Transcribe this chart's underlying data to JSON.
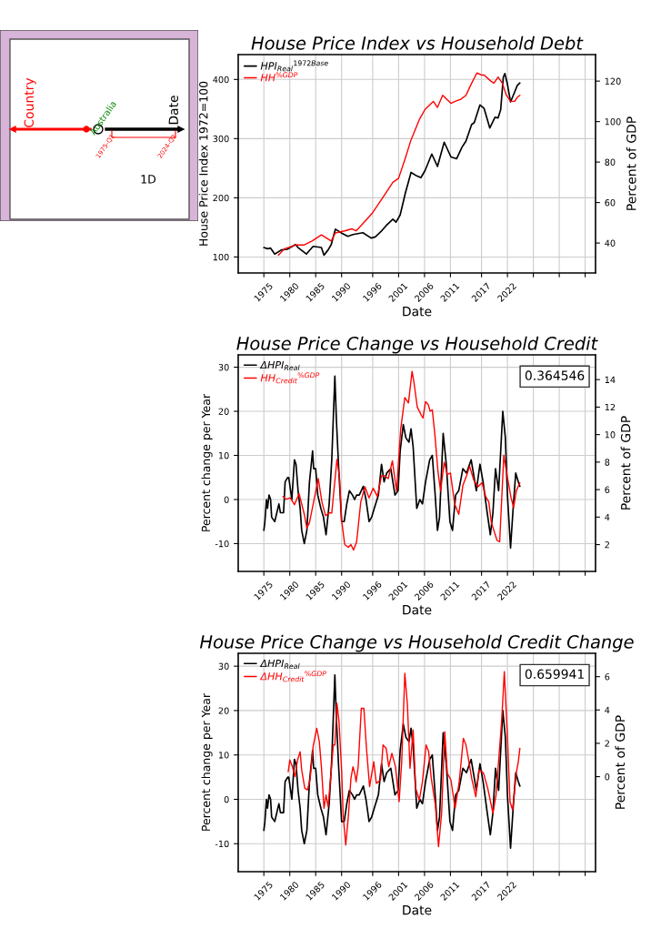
{
  "chart_data": [
    {
      "type": "other",
      "annotations": [
        "Country",
        "Australia",
        "Date",
        "1975-Q1",
        "2024-Q2",
        "1D"
      ]
    },
    {
      "type": "line",
      "title": "House Price Index vs Household Debt",
      "xlabel": "Date",
      "ylabel": "House Price Index 1972=100",
      "y2label": "Percent of GDP",
      "xlim": [
        1970.05,
        2039
      ],
      "xticks": [
        1975,
        1980,
        1985,
        1990,
        1996,
        2001,
        2006,
        2011,
        2017,
        2022,
        {
          "value": 2027,
          "label": null
        },
        {
          "value": 2032,
          "label": null
        },
        {
          "value": 2037,
          "label": null
        }
      ],
      "ylim": [
        73,
        442
      ],
      "yticks": [
        100,
        200,
        300,
        400
      ],
      "y2lim": [
        25.2,
        133.1
      ],
      "y2ticks": [
        40,
        60,
        80,
        100,
        120
      ],
      "grid": true,
      "legend": "top left",
      "series": [
        {
          "name": "HPI$_{Real}$$^{1972Base}$",
          "color": "#000000",
          "x": [
            1975.0,
            1975.7,
            1976.3,
            1977.1,
            1978.4,
            1979.5,
            1981.1,
            1981.6,
            1983.2,
            1984.5,
            1986.1,
            1986.6,
            1987.4,
            1988.0,
            1988.8,
            1990.1,
            1991.2,
            1992.2,
            1994.1,
            1995.7,
            1996.5,
            1997.6,
            1998.6,
            1999.9,
            2000.5,
            2001.3,
            2002.3,
            2003.4,
            2004.5,
            2005.3,
            2006.1,
            2007.4,
            2008.5,
            2009.8,
            2011.1,
            2012.2,
            2013.2,
            2014.0,
            2015.1,
            2015.6,
            2016.7,
            2017.5,
            2018.6,
            2019.6,
            2020.2,
            2020.7,
            2021.2,
            2021.5,
            2022.0,
            2022.6,
            2023.4,
            2023.9,
            2024.4
          ],
          "values": [
            116,
            114,
            115,
            105,
            112,
            113,
            121,
            116,
            105,
            118,
            116,
            103,
            112,
            121,
            147,
            140,
            135,
            138,
            141,
            132,
            134,
            143,
            153,
            164,
            159,
            171,
            208,
            243,
            237,
            234,
            246,
            274,
            253,
            294,
            269,
            266,
            285,
            296,
            324,
            327,
            357,
            351,
            318,
            336,
            335,
            349,
            404,
            410,
            392,
            362,
            379,
            390,
            394
          ]
        },
        {
          "name": "HH$^{%GDP}$",
          "color": "#ff0000",
          "axis": "y2",
          "x": [
            1977.8,
            1978.9,
            1981.1,
            1982.7,
            1984.3,
            1986.1,
            1988.0,
            1988.8,
            1990.6,
            1992.0,
            1992.8,
            1993.9,
            1996.0,
            1998.1,
            1999.9,
            2001.0,
            2002.3,
            2003.4,
            2005.0,
            2006.1,
            2007.7,
            2008.5,
            2009.5,
            2011.1,
            2011.9,
            2013.0,
            2014.0,
            2015.1,
            2016.1,
            2017.0,
            2017.5,
            2018.8,
            2019.4,
            2020.2,
            2021.0,
            2021.8,
            2022.6,
            2023.4,
            2023.9,
            2024.4
          ],
          "values": [
            34,
            37,
            39,
            39,
            41,
            44,
            41,
            45,
            46,
            47,
            46,
            49,
            55,
            63,
            70,
            72,
            82,
            91,
            101,
            106,
            110,
            107,
            113,
            109,
            110,
            111,
            113,
            119,
            124,
            123,
            123,
            120,
            119,
            122,
            119,
            113,
            110,
            110,
            112,
            113
          ]
        }
      ]
    },
    {
      "type": "line",
      "title": "House Price Change vs Household Credit",
      "xlabel": "Date",
      "ylabel": "Percent change per Year",
      "y2label": "Percent of GDP",
      "xlim": [
        1970.05,
        2039
      ],
      "xticks": [
        1975,
        1980,
        1985,
        1990,
        1996,
        2001,
        2006,
        2011,
        2017,
        2022,
        {
          "value": 2027,
          "label": null
        },
        {
          "value": 2032,
          "label": null
        },
        {
          "value": 2037,
          "label": null
        }
      ],
      "ylim": [
        -16.3,
        32.8
      ],
      "yticks": [
        -10,
        0,
        10,
        20,
        30
      ],
      "y2lim": [
        0.05,
        15.8
      ],
      "y2ticks": [
        2,
        4,
        6,
        8,
        10,
        12,
        14
      ],
      "grid": true,
      "legend": "top left",
      "annotations": [
        "0.364546"
      ],
      "series": [
        {
          "name": "ΔHPI$_{Real}$",
          "color": "#000000",
          "x": [
            1975.0,
            1975.2,
            1975.5,
            1975.7,
            1976.0,
            1976.3,
            1976.5,
            1977.1,
            1977.9,
            1978.2,
            1978.8,
            1979.1,
            1979.6,
            1979.8,
            1980.4,
            1980.9,
            1981.2,
            1981.6,
            1982.0,
            1982.3,
            1982.8,
            1983.3,
            1983.8,
            1984.4,
            1984.6,
            1985.0,
            1985.4,
            1986.0,
            1986.5,
            1987.0,
            1987.6,
            1988.1,
            1988.7,
            1989.0,
            1989.4,
            1990.0,
            1990.5,
            1991.0,
            1991.5,
            1992.1,
            1992.5,
            1992.9,
            1993.4,
            1994.2,
            1994.7,
            1995.3,
            1995.8,
            1996.3,
            1997.1,
            1997.7,
            1998.2,
            1998.7,
            1999.5,
            2000.3,
            2000.9,
            2001.3,
            2001.9,
            2002.4,
            2003.0,
            2003.4,
            2003.8,
            2004.5,
            2005.1,
            2005.6,
            2006.2,
            2007.0,
            2007.5,
            2008.0,
            2008.5,
            2008.9,
            2009.6,
            2010.2,
            2010.9,
            2011.4,
            2012.0,
            2012.6,
            2013.4,
            2014.1,
            2015.0,
            2016.0,
            2016.7,
            2017.3,
            2018.1,
            2018.7,
            2019.2,
            2019.7,
            2020.3,
            2021.1,
            2021.6,
            2022.0,
            2022.6,
            2023.1,
            2023.6,
            2024.1,
            2024.4
          ],
          "values": [
            -7,
            -5,
            0,
            -2,
            1,
            0,
            -4,
            -5,
            -1,
            -3,
            -3,
            4,
            5,
            5,
            0,
            9,
            8,
            2,
            -2,
            -7,
            -10,
            -7,
            4,
            11,
            7,
            7,
            1,
            -2,
            -4,
            -8,
            -1,
            9,
            28,
            18,
            8,
            -5,
            -5,
            -1,
            2,
            1,
            0,
            1,
            1,
            3,
            0,
            -5,
            -4,
            -2,
            1,
            8,
            4,
            6,
            7,
            1,
            2,
            11,
            17,
            14,
            13,
            16,
            12,
            -2,
            0,
            -1,
            4,
            9,
            10,
            2,
            -7,
            -4,
            15,
            8,
            -5,
            -7,
            1,
            2,
            7,
            6,
            9,
            2,
            8,
            4,
            -3,
            -8,
            -3,
            7,
            2,
            20,
            14,
            1,
            -11,
            -2,
            6,
            4,
            3
          ]
        },
        {
          "name": "HH$_{Credit}$$^{%GDP}$",
          "color": "#ff0000",
          "axis": "y2",
          "x": [
            1978.7,
            1979.3,
            1980.1,
            1980.9,
            1981.8,
            1982.8,
            1983.3,
            1983.8,
            1984.6,
            1985.5,
            1986.2,
            1986.9,
            1987.6,
            1988.1,
            1989.1,
            1989.6,
            1990.0,
            1990.6,
            1991.3,
            1991.8,
            1992.3,
            1992.9,
            1993.7,
            1994.5,
            1995.3,
            1996.1,
            1996.9,
            1997.7,
            1998.3,
            1999.0,
            1999.8,
            2000.6,
            2001.4,
            2002.2,
            2002.9,
            2003.6,
            2004.0,
            2004.6,
            2005.4,
            2005.7,
            2006.2,
            2006.7,
            2007.1,
            2007.5,
            2008.0,
            2008.6,
            2009.1,
            2009.8,
            2010.4,
            2011.0,
            2011.8,
            2012.6,
            2013.4,
            2014.1,
            2014.7,
            2015.5,
            2016.3,
            2017.1,
            2017.8,
            2018.4,
            2018.9,
            2020.0,
            2020.5,
            2021.3,
            2021.9,
            2022.7,
            2023.2,
            2023.7,
            2024.4
          ],
          "values": [
            5.5,
            5.3,
            5.4,
            4.9,
            5.7,
            4.2,
            3.2,
            3.6,
            5.1,
            6.8,
            5.1,
            4.1,
            4.3,
            4.3,
            8.2,
            6.9,
            3.8,
            2.0,
            1.8,
            2.0,
            1.6,
            2.2,
            5.1,
            6.2,
            5.4,
            6.1,
            5.5,
            7.0,
            7.0,
            6.8,
            8.1,
            5.9,
            10.4,
            12.7,
            12.3,
            14.6,
            13.7,
            12.0,
            11.4,
            11.2,
            12.4,
            12.2,
            11.7,
            11.8,
            10.0,
            7.3,
            5.9,
            8.0,
            7.1,
            7.2,
            5.0,
            4.2,
            6.3,
            7.0,
            7.7,
            6.7,
            6.2,
            6.5,
            5.5,
            5.1,
            3.6,
            2.3,
            2.2,
            8.5,
            7.1,
            5.4,
            4.7,
            5.9,
            6.5
          ]
        }
      ]
    },
    {
      "type": "line",
      "title": "House Price Change vs Household Credit Change",
      "xlabel": "Date",
      "ylabel": "Percent change per Year",
      "y2label": "Percent of GDP",
      "xlim": [
        1970.05,
        2039
      ],
      "xticks": [
        1975,
        1980,
        1985,
        1990,
        1996,
        2001,
        2006,
        2011,
        2017,
        2022,
        {
          "value": 2027,
          "label": null
        },
        {
          "value": 2032,
          "label": null
        },
        {
          "value": 2037,
          "label": null
        }
      ],
      "ylim": [
        -16.3,
        32.9
      ],
      "yticks": [
        -10,
        0,
        10,
        20,
        30
      ],
      "y2lim": [
        -5.7,
        7.4
      ],
      "y2ticks": [
        0,
        2,
        4,
        6
      ],
      "grid": true,
      "legend": "top left",
      "annotations": [
        "0.659941"
      ],
      "series": [
        {
          "name": "ΔHPI$_{Real}$",
          "color": "#000000",
          "x": [
            1975.0,
            1975.2,
            1975.5,
            1975.7,
            1976.0,
            1976.3,
            1976.5,
            1977.1,
            1977.9,
            1978.2,
            1978.8,
            1979.1,
            1979.6,
            1979.8,
            1980.4,
            1980.9,
            1981.2,
            1981.6,
            1982.0,
            1982.3,
            1982.8,
            1983.3,
            1983.8,
            1984.4,
            1984.6,
            1985.0,
            1985.4,
            1986.0,
            1986.5,
            1987.0,
            1987.6,
            1988.1,
            1988.7,
            1989.0,
            1989.4,
            1990.0,
            1990.5,
            1991.0,
            1991.5,
            1992.1,
            1992.5,
            1992.9,
            1993.4,
            1994.2,
            1994.7,
            1995.3,
            1995.8,
            1996.3,
            1997.1,
            1997.7,
            1998.2,
            1998.7,
            1999.5,
            2000.3,
            2000.9,
            2001.3,
            2001.9,
            2002.4,
            2003.0,
            2003.4,
            2003.8,
            2004.5,
            2005.1,
            2005.6,
            2006.2,
            2007.0,
            2007.5,
            2008.0,
            2008.5,
            2008.9,
            2009.6,
            2010.2,
            2010.9,
            2011.4,
            2012.0,
            2012.6,
            2013.4,
            2014.1,
            2015.0,
            2016.0,
            2016.7,
            2017.3,
            2018.1,
            2018.7,
            2019.2,
            2019.7,
            2020.3,
            2021.1,
            2021.6,
            2022.0,
            2022.6,
            2023.1,
            2023.6,
            2024.1,
            2024.4
          ],
          "values": [
            -7,
            -5,
            0,
            -2,
            1,
            0,
            -4,
            -5,
            -1,
            -3,
            -3,
            4,
            5,
            5,
            0,
            9,
            8,
            2,
            -2,
            -7,
            -10,
            -7,
            4,
            11,
            7,
            7,
            1,
            -2,
            -4,
            -8,
            -1,
            9,
            28,
            18,
            8,
            -5,
            -5,
            -1,
            2,
            1,
            0,
            1,
            1,
            3,
            0,
            -5,
            -4,
            -2,
            1,
            8,
            4,
            6,
            7,
            1,
            2,
            11,
            17,
            14,
            13,
            16,
            12,
            -2,
            0,
            -1,
            4,
            9,
            10,
            2,
            -7,
            -4,
            15,
            8,
            -5,
            -7,
            1,
            2,
            7,
            6,
            9,
            2,
            8,
            4,
            -3,
            -8,
            -3,
            7,
            2,
            20,
            14,
            1,
            -11,
            -2,
            6,
            4,
            3
          ]
        },
        {
          "name": "ΔHH$_{Credit}$$^{%GDP}$",
          "color": "#ff0000",
          "axis": "y2",
          "x": [
            1979.7,
            1980.0,
            1980.5,
            1981.0,
            1981.5,
            1982.0,
            1982.3,
            1982.9,
            1983.4,
            1983.9,
            1984.5,
            1985.2,
            1985.7,
            1986.1,
            1986.6,
            1987.0,
            1987.4,
            1987.9,
            1988.4,
            1988.7,
            1989.1,
            1989.5,
            1990.0,
            1990.3,
            1990.8,
            1991.3,
            1991.8,
            1992.2,
            1992.6,
            1992.8,
            1993.2,
            1993.8,
            1994.3,
            1994.8,
            1995.4,
            1996.2,
            1996.7,
            1997.5,
            1998.0,
            1998.6,
            1999.1,
            1999.7,
            2000.4,
            2001.1,
            2001.6,
            2002.2,
            2002.7,
            2003.2,
            2003.8,
            2004.3,
            2005.0,
            2005.6,
            2006.3,
            2006.8,
            2007.3,
            2008.1,
            2008.7,
            2009.3,
            2009.9,
            2010.4,
            2011.1,
            2011.9,
            2012.7,
            2013.5,
            2014.0,
            2014.4,
            2015.1,
            2015.9,
            2016.5,
            2017.1,
            2017.4,
            2018.2,
            2019.2,
            2019.8,
            2020.9,
            2021.4,
            2022.0,
            2022.5,
            2023.0,
            2023.7,
            2024.1,
            2024.4
          ],
          "values": [
            0.3,
            1.0,
            0.6,
            0,
            1.0,
            1.5,
            0.4,
            -0.7,
            -0.8,
            -0.2,
            1.8,
            2.9,
            2.1,
            0.6,
            -1.9,
            -1.1,
            -1.8,
            0,
            1.9,
            1.9,
            4.4,
            3.3,
            0.4,
            -2.3,
            -4.1,
            -2.4,
            -0.1,
            0.6,
            0.1,
            -0.3,
            0.6,
            4.1,
            4.1,
            1.7,
            -0.6,
            0.9,
            -0.4,
            -0.2,
            1.9,
            1.7,
            0.6,
            1.4,
            0.6,
            -1.5,
            0.9,
            6.2,
            4.3,
            0.5,
            2.8,
            -0.7,
            -1.4,
            -0.3,
            1.9,
            1.5,
            -0.1,
            -1.7,
            -4.2,
            -2.2,
            2.7,
            0.2,
            -0.2,
            -1.9,
            -0.3,
            2.3,
            1.9,
            1.2,
            -0.1,
            -1.2,
            0.4,
            0.3,
            0.2,
            -0.7,
            -2.2,
            -1.1,
            3.4,
            6.3,
            2.4,
            -1.5,
            -2.0,
            0.2,
            0.9,
            1.7
          ]
        }
      ]
    }
  ]
}
